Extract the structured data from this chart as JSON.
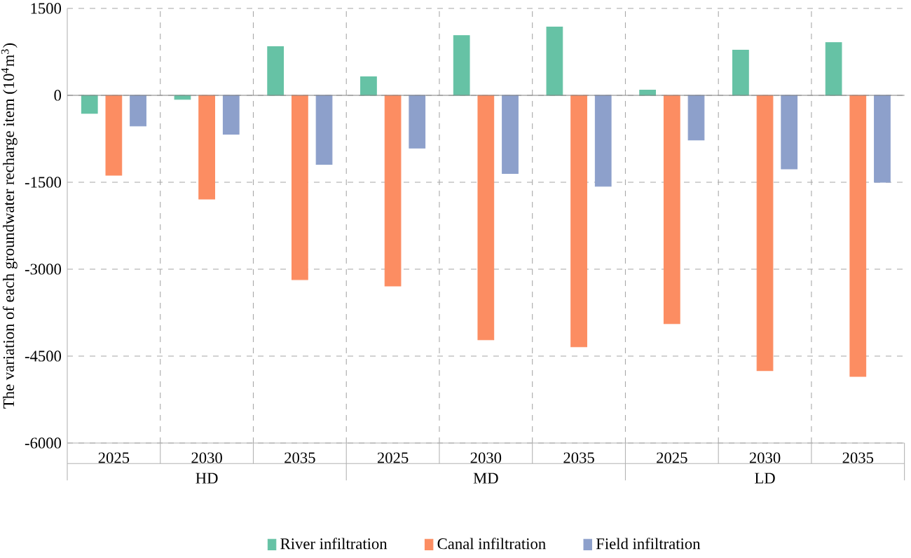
{
  "chart_data": {
    "type": "bar",
    "ylabel": "The variation of each groundwater recharge item (10$^{4}$m$^{3}$)",
    "categories": [
      "2025",
      "2030",
      "2035",
      "2025",
      "2030",
      "2035",
      "2025",
      "2030",
      "2035"
    ],
    "annotations": [
      "HD",
      "MD",
      "LD"
    ],
    "series": [
      {
        "name": "River infiltration",
        "color": "#66c2a5",
        "values": [
          -310,
          -70,
          840,
          320,
          1030,
          1180,
          90,
          780,
          910
        ]
      },
      {
        "name": "Canal infiltration",
        "color": "#fc8d62",
        "values": [
          -1380,
          -1790,
          -3180,
          -3290,
          -4220,
          -4340,
          -3940,
          -4750,
          -4850
        ]
      },
      {
        "name": "Field infiltration",
        "color": "#8da0cb",
        "values": [
          -530,
          -670,
          -1190,
          -910,
          -1350,
          -1570,
          -770,
          -1270,
          -1500
        ]
      }
    ],
    "ylim": [
      -6000,
      1500
    ],
    "yticks": [
      -6000,
      -4500,
      -3000,
      -1500,
      0,
      1500
    ],
    "grid": true,
    "legend": "bottom"
  }
}
